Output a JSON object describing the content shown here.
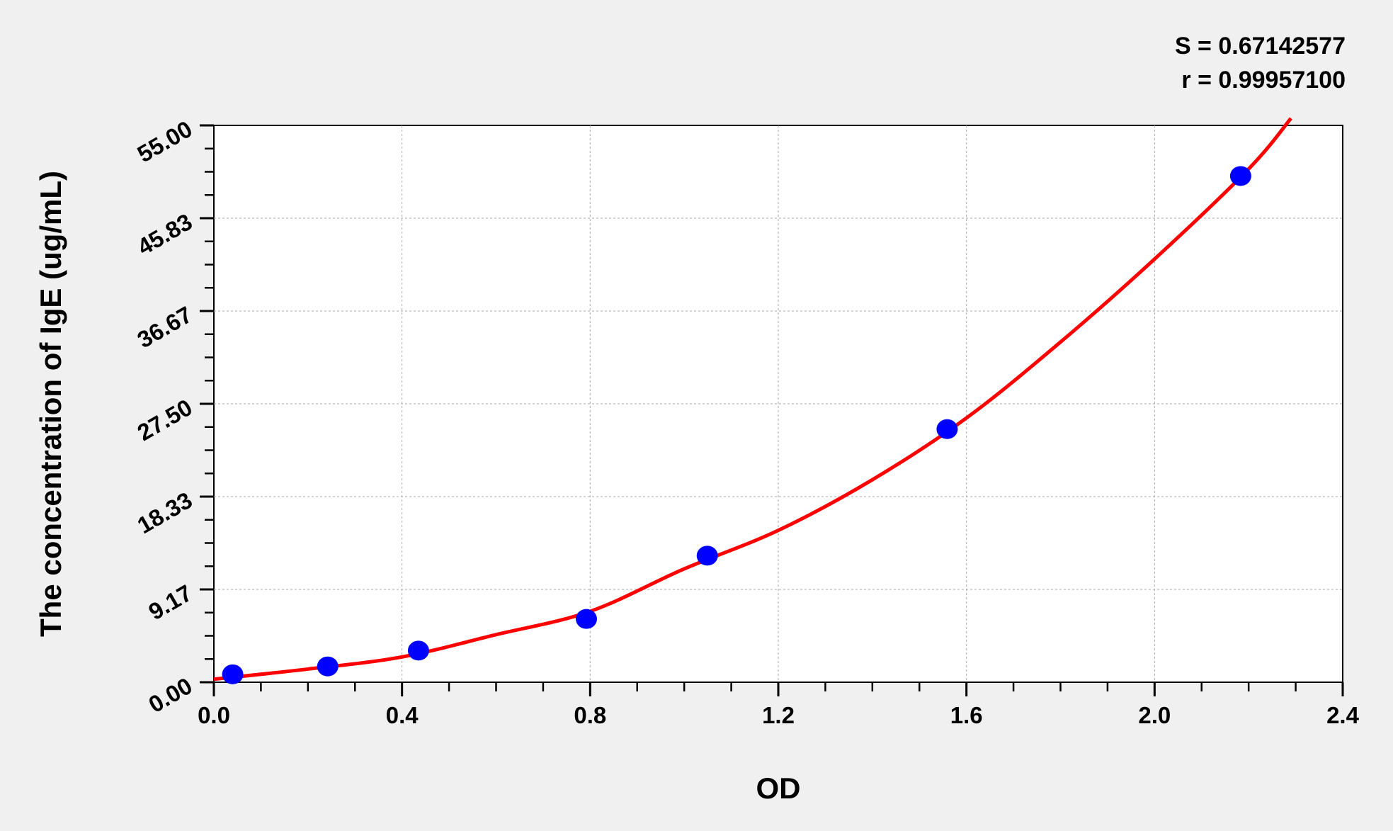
{
  "chart_data": {
    "type": "scatter",
    "title": "",
    "xlabel": "OD",
    "ylabel": "The concentration of IgE (ug/mL)",
    "xlim": [
      0,
      2.4
    ],
    "ylim": [
      0,
      55
    ],
    "x_ticks": [
      "0.0",
      "0.4",
      "0.8",
      "1.2",
      "1.6",
      "2.0",
      "2.4"
    ],
    "y_ticks": [
      "0.00",
      "9.17",
      "18.33",
      "27.50",
      "36.67",
      "45.83",
      "55.00"
    ],
    "grid": true,
    "stats": [
      "S = 0.67142577",
      "r = 0.99957100"
    ],
    "points": {
      "color": "#0000ff",
      "x": [
        0.04,
        0.242,
        0.435,
        0.792,
        1.049,
        1.559,
        2.183
      ],
      "y": [
        0.78,
        1.56,
        3.125,
        6.25,
        12.5,
        25,
        50
      ]
    },
    "fit_curve": {
      "color": "#ff0000",
      "x": [
        0,
        0.2,
        0.4,
        0.6,
        0.8,
        1.0,
        1.2,
        1.4,
        1.6,
        1.8,
        2.0,
        2.2,
        2.29
      ],
      "y": [
        0.3,
        1.3,
        2.5,
        4.7,
        7.0,
        11.2,
        15.0,
        20.0,
        26.1,
        33.6,
        41.8,
        50.7,
        55.7
      ]
    }
  }
}
